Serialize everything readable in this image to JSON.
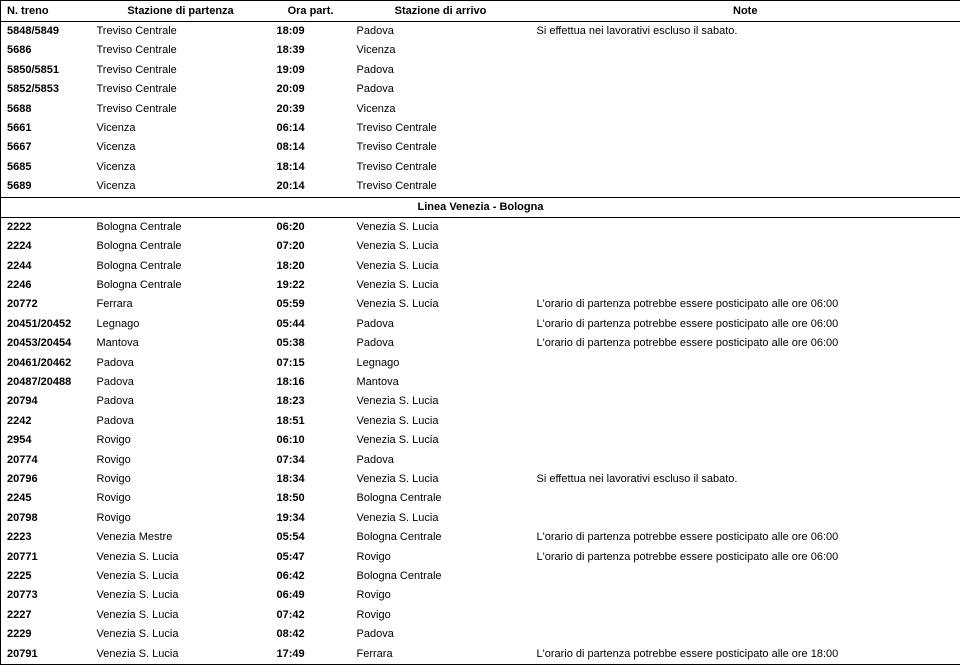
{
  "columns": [
    {
      "key": "treno",
      "label": "N. treno",
      "align": "left"
    },
    {
      "key": "partenza",
      "label": "Stazione di partenza",
      "align": "center"
    },
    {
      "key": "ora",
      "label": "Ora part.",
      "align": "center"
    },
    {
      "key": "arrivo",
      "label": "Stazione di arrivo",
      "align": "center"
    },
    {
      "key": "note",
      "label": "Note",
      "align": "center"
    }
  ],
  "rows": [
    {
      "treno": "5848/5849",
      "partenza": "Treviso Centrale",
      "ora": "18:09",
      "arrivo": "Padova",
      "note": "Si effettua nei lavorativi escluso il sabato."
    },
    {
      "treno": "5686",
      "partenza": "Treviso Centrale",
      "ora": "18:39",
      "arrivo": "Vicenza",
      "note": ""
    },
    {
      "treno": "5850/5851",
      "partenza": "Treviso Centrale",
      "ora": "19:09",
      "arrivo": "Padova",
      "note": ""
    },
    {
      "treno": "5852/5853",
      "partenza": "Treviso Centrale",
      "ora": "20:09",
      "arrivo": "Padova",
      "note": ""
    },
    {
      "treno": "5688",
      "partenza": "Treviso Centrale",
      "ora": "20:39",
      "arrivo": "Vicenza",
      "note": ""
    },
    {
      "treno": "5661",
      "partenza": "Vicenza",
      "ora": "06:14",
      "arrivo": "Treviso Centrale",
      "note": ""
    },
    {
      "treno": "5667",
      "partenza": "Vicenza",
      "ora": "08:14",
      "arrivo": "Treviso Centrale",
      "note": ""
    },
    {
      "treno": "5685",
      "partenza": "Vicenza",
      "ora": "18:14",
      "arrivo": "Treviso Centrale",
      "note": ""
    },
    {
      "treno": "5689",
      "partenza": "Vicenza",
      "ora": "20:14",
      "arrivo": "Treviso Centrale",
      "note": ""
    },
    {
      "section": "Linea Venezia - Bologna"
    },
    {
      "treno": "2222",
      "partenza": "Bologna Centrale",
      "ora": "06:20",
      "arrivo": "Venezia S. Lucia",
      "note": ""
    },
    {
      "treno": "2224",
      "partenza": "Bologna Centrale",
      "ora": "07:20",
      "arrivo": "Venezia S. Lucia",
      "note": ""
    },
    {
      "treno": "2244",
      "partenza": "Bologna Centrale",
      "ora": "18:20",
      "arrivo": "Venezia S. Lucia",
      "note": ""
    },
    {
      "treno": "2246",
      "partenza": "Bologna Centrale",
      "ora": "19:22",
      "arrivo": "Venezia S. Lucia",
      "note": ""
    },
    {
      "treno": "20772",
      "partenza": "Ferrara",
      "ora": "05:59",
      "arrivo": "Venezia S. Lucia",
      "note": "L'orario di partenza potrebbe essere posticipato alle ore 06:00"
    },
    {
      "treno": "20451/20452",
      "partenza": "Legnago",
      "ora": "05:44",
      "arrivo": "Padova",
      "note": "L'orario di partenza potrebbe essere posticipato alle ore 06:00"
    },
    {
      "treno": "20453/20454",
      "partenza": "Mantova",
      "ora": "05:38",
      "arrivo": "Padova",
      "note": "L'orario di partenza potrebbe essere posticipato alle ore 06:00"
    },
    {
      "treno": "20461/20462",
      "partenza": "Padova",
      "ora": "07:15",
      "arrivo": "Legnago",
      "note": ""
    },
    {
      "treno": "20487/20488",
      "partenza": "Padova",
      "ora": "18:16",
      "arrivo": "Mantova",
      "note": ""
    },
    {
      "treno": "20794",
      "partenza": "Padova",
      "ora": "18:23",
      "arrivo": "Venezia S. Lucia",
      "note": ""
    },
    {
      "treno": "2242",
      "partenza": "Padova",
      "ora": "18:51",
      "arrivo": "Venezia S. Lucia",
      "note": ""
    },
    {
      "treno": "2954",
      "partenza": "Rovigo",
      "ora": "06:10",
      "arrivo": "Venezia S. Lucia",
      "note": ""
    },
    {
      "treno": "20774",
      "partenza": "Rovigo",
      "ora": "07:34",
      "arrivo": "Padova",
      "note": ""
    },
    {
      "treno": "20796",
      "partenza": "Rovigo",
      "ora": "18:34",
      "arrivo": "Venezia S. Lucia",
      "note": "Si effettua nei lavorativi escluso il sabato."
    },
    {
      "treno": "2245",
      "partenza": "Rovigo",
      "ora": "18:50",
      "arrivo": "Bologna Centrale",
      "note": ""
    },
    {
      "treno": "20798",
      "partenza": "Rovigo",
      "ora": "19:34",
      "arrivo": "Venezia S. Lucia",
      "note": ""
    },
    {
      "treno": "2223",
      "partenza": "Venezia Mestre",
      "ora": "05:54",
      "arrivo": "Bologna Centrale",
      "note": "L'orario di partenza potrebbe essere posticipato alle ore 06:00"
    },
    {
      "treno": "20771",
      "partenza": "Venezia S. Lucia",
      "ora": "05:47",
      "arrivo": "Rovigo",
      "note": "L'orario di partenza potrebbe essere posticipato alle ore 06:00"
    },
    {
      "treno": "2225",
      "partenza": "Venezia S. Lucia",
      "ora": "06:42",
      "arrivo": "Bologna Centrale",
      "note": ""
    },
    {
      "treno": "20773",
      "partenza": "Venezia S. Lucia",
      "ora": "06:49",
      "arrivo": "Rovigo",
      "note": ""
    },
    {
      "treno": "2227",
      "partenza": "Venezia S. Lucia",
      "ora": "07:42",
      "arrivo": "Rovigo",
      "note": ""
    },
    {
      "treno": "2229",
      "partenza": "Venezia S. Lucia",
      "ora": "08:42",
      "arrivo": "Padova",
      "note": ""
    },
    {
      "treno": "20791",
      "partenza": "Venezia S. Lucia",
      "ora": "17:49",
      "arrivo": "Ferrara",
      "note": "L'orario di partenza potrebbe essere posticipato alle ore 18:00"
    }
  ]
}
